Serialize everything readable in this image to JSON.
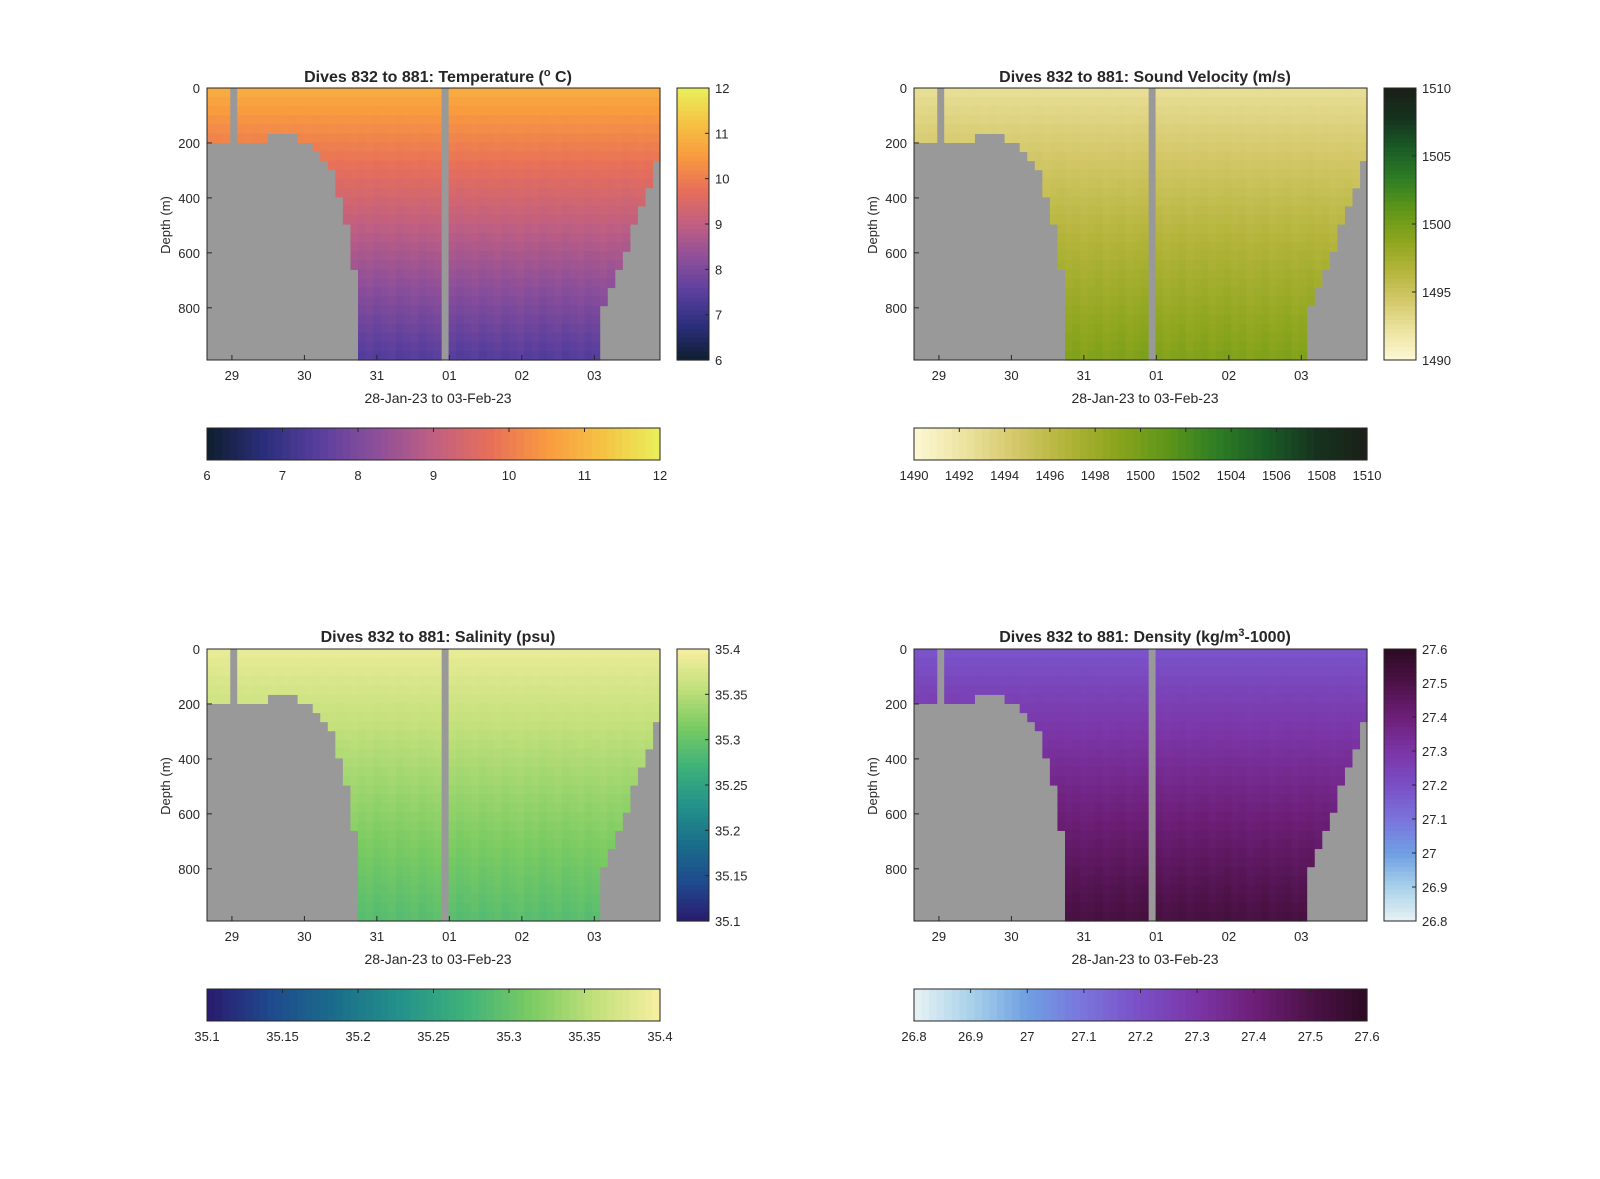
{
  "chart_data": [
    {
      "type": "heatmap",
      "title": "Dives 832 to 881: Temperature (",
      "title_degree": "o",
      "title_unit_suffix": " C)",
      "xlabel": "28-Jan-23 to 03-Feb-23",
      "ylabel": "Depth (m)",
      "x_ticks": [
        "29",
        "30",
        "31",
        "01",
        "02",
        "03"
      ],
      "y_ticks": [
        "0",
        "200",
        "400",
        "600",
        "800"
      ],
      "ylim": [
        0,
        990
      ],
      "y_reversed": true,
      "colorbar_ticks": [
        "6",
        "7",
        "8",
        "9",
        "10",
        "11",
        "12"
      ],
      "colorbar_range": [
        6,
        12
      ],
      "colormap": [
        "#0f1e2e",
        "#2a2e7a",
        "#5a3f9e",
        "#8d4f9a",
        "#c05f82",
        "#e76f5a",
        "#f99a3f",
        "#f5c344",
        "#e9f05a"
      ],
      "surface_value": 10.9,
      "bottom_value": 7.4,
      "land_color": "#999999"
    },
    {
      "type": "heatmap",
      "title": "Dives 832 to 881: Sound Velocity (m/s)",
      "xlabel": "28-Jan-23 to 03-Feb-23",
      "ylabel": "Depth (m)",
      "x_ticks": [
        "29",
        "30",
        "31",
        "01",
        "02",
        "03"
      ],
      "y_ticks": [
        "0",
        "200",
        "400",
        "600",
        "800"
      ],
      "ylim": [
        0,
        990
      ],
      "y_reversed": true,
      "colorbar_ticks": [
        "1490",
        "1495",
        "1500",
        "1505",
        "1510"
      ],
      "colorbar_ticks_horizontal": [
        "1490",
        "1492",
        "1494",
        "1496",
        "1498",
        "1500",
        "1502",
        "1504",
        "1506",
        "1508",
        "1510"
      ],
      "colorbar_range": [
        1490,
        1510
      ],
      "colormap": [
        "#fdf7d5",
        "#ece3a0",
        "#d4c86a",
        "#b3b43a",
        "#8ca51d",
        "#5f9619",
        "#2f7e25",
        "#1a5c26",
        "#16331e",
        "#1b1f18"
      ],
      "surface_value": 1492.5,
      "bottom_value": 1499.5,
      "land_color": "#999999"
    },
    {
      "type": "heatmap",
      "title": "Dives 832 to 881: Salinity (psu)",
      "xlabel": "28-Jan-23 to 03-Feb-23",
      "ylabel": "Depth (m)",
      "x_ticks": [
        "29",
        "30",
        "31",
        "01",
        "02",
        "03"
      ],
      "y_ticks": [
        "0",
        "200",
        "400",
        "600",
        "800"
      ],
      "ylim": [
        0,
        990
      ],
      "y_reversed": true,
      "colorbar_ticks": [
        "35.1",
        "35.15",
        "35.2",
        "35.25",
        "35.3",
        "35.35",
        "35.4"
      ],
      "colorbar_range": [
        35.1,
        35.4
      ],
      "colormap": [
        "#2a1a6e",
        "#1f4a8d",
        "#1a6e8b",
        "#24928a",
        "#3fb27a",
        "#7acb62",
        "#c2e07b",
        "#f7efa0"
      ],
      "surface_value": 35.39,
      "bottom_value": 35.29,
      "land_color": "#999999"
    },
    {
      "type": "heatmap",
      "title": "Dives 832 to 881: Density (kg/m",
      "title_superscript": "3",
      "title_unit_suffix": "-1000)",
      "xlabel": "28-Jan-23 to 03-Feb-23",
      "ylabel": "Depth (m)",
      "x_ticks": [
        "29",
        "30",
        "31",
        "01",
        "02",
        "03"
      ],
      "y_ticks": [
        "0",
        "200",
        "400",
        "600",
        "800"
      ],
      "ylim": [
        0,
        990
      ],
      "y_reversed": true,
      "colorbar_ticks": [
        "26.8",
        "26.9",
        "27",
        "27.1",
        "27.2",
        "27.3",
        "27.4",
        "27.5",
        "27.6"
      ],
      "colorbar_range": [
        26.8,
        27.6
      ],
      "colormap": [
        "#e8f2f5",
        "#a9d2ea",
        "#6f9fe3",
        "#7a74dc",
        "#7a4fc6",
        "#7b35a6",
        "#6d1f78",
        "#4d1248",
        "#2d0a24"
      ],
      "surface_value": 27.18,
      "bottom_value": 27.52,
      "land_color": "#999999"
    }
  ]
}
